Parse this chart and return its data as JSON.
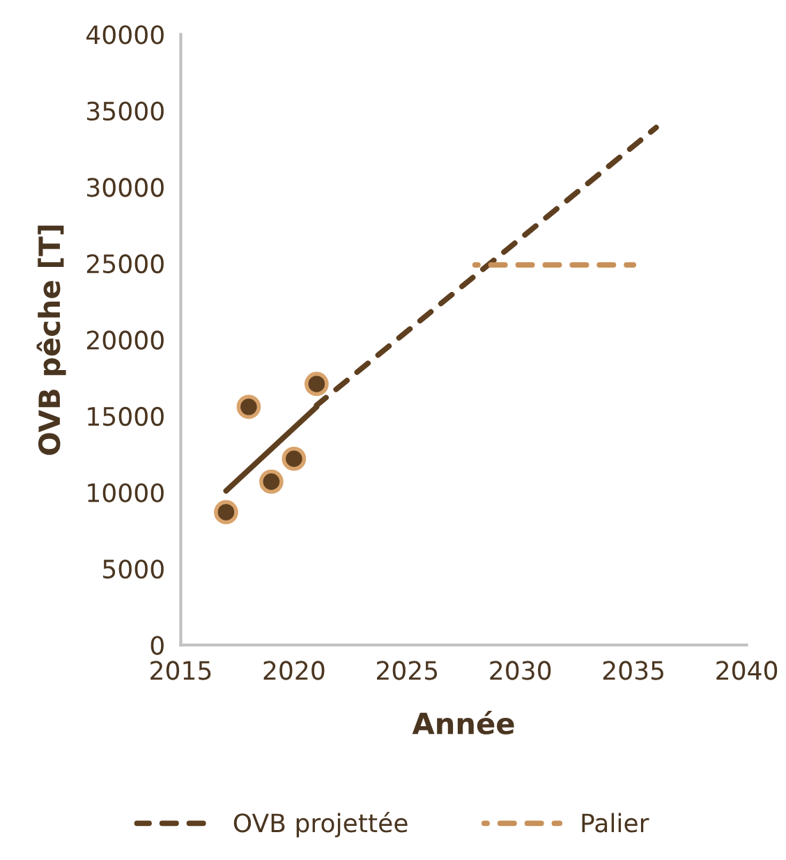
{
  "chart_data": {
    "type": "scatter",
    "xlabel": "Année",
    "ylabel": "OVB pêche [T]",
    "xlim": [
      2015,
      2040
    ],
    "xticks": [
      2015,
      2020,
      2025,
      2030,
      2035,
      2040
    ],
    "ylim": [
      0,
      40000
    ],
    "yticks": [
      0,
      5000,
      10000,
      15000,
      20000,
      25000,
      30000,
      35000,
      40000
    ],
    "grid": false,
    "legend": "bottom",
    "series": [
      {
        "color": "#5e3f1f",
        "marker": "circle",
        "x": [
          2017,
          2018,
          2019,
          2020,
          2021
        ],
        "values": [
          8700,
          15600,
          10700,
          12200,
          17100
        ]
      },
      {
        "type": "line",
        "color": "#5e3f1f",
        "line_style": "solid",
        "marker": "none",
        "x": [
          2017,
          2021
        ],
        "values": [
          10100,
          15600
        ]
      },
      {
        "type": "line",
        "name": "OVB projettée",
        "color": "#5e3f1f",
        "line_style": "dashed",
        "marker": "none",
        "x": [
          2021,
          2036
        ],
        "values": [
          15700,
          33900
        ]
      },
      {
        "type": "line",
        "name": "Palier",
        "color": "#c8915a",
        "line_style": "dashed",
        "marker": "none",
        "x": [
          2028,
          2035
        ],
        "values": [
          24900,
          24900
        ]
      }
    ]
  }
}
